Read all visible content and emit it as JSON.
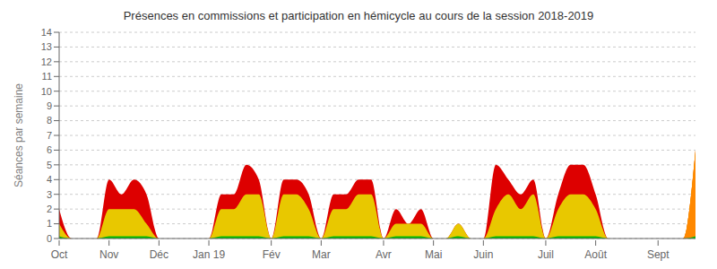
{
  "chart_data": {
    "type": "area",
    "title": "Présences en commissions et participation en hémicycle au cours de la session 2018-2019",
    "ylabel": "Séances par semaine",
    "categories": [
      "Oct",
      null,
      null,
      null,
      "Nov",
      null,
      null,
      null,
      "Déc",
      null,
      null,
      null,
      "Jan 19",
      null,
      null,
      null,
      null,
      "Fév",
      null,
      null,
      null,
      "Mar",
      null,
      null,
      null,
      null,
      "Avr",
      null,
      null,
      null,
      "Mai",
      null,
      null,
      null,
      "Juin",
      null,
      null,
      null,
      null,
      "Juil",
      null,
      null,
      null,
      "Août",
      null,
      null,
      null,
      null,
      "Sept",
      null,
      null,
      null
    ],
    "series": [
      {
        "color": "#dd0000",
        "values": [
          2,
          0,
          0,
          0,
          4,
          3,
          4,
          3,
          0,
          0,
          0,
          0,
          0,
          3,
          3,
          5,
          4,
          0,
          4,
          4,
          3,
          0,
          3,
          3,
          4,
          4,
          0,
          2,
          1,
          2,
          0,
          0,
          1,
          0,
          0,
          5,
          4,
          3,
          4,
          0,
          3,
          5,
          5,
          3,
          0,
          0,
          0,
          0,
          0,
          0,
          0,
          6
        ]
      },
      {
        "color": "#e8c800",
        "values": [
          1,
          0,
          0,
          0,
          2,
          2,
          2,
          1,
          0,
          0,
          0,
          0,
          0,
          2,
          2,
          3,
          3,
          0,
          3,
          3,
          2,
          0,
          2,
          2,
          3,
          3,
          0,
          1,
          1,
          1,
          0,
          0,
          1,
          0,
          0,
          2,
          3,
          2,
          3,
          0,
          2,
          3,
          3,
          2,
          0,
          0,
          0,
          0,
          0,
          0,
          0,
          6
        ]
      },
      {
        "color": "#ff8800",
        "values": [
          null,
          null,
          null,
          null,
          null,
          null,
          null,
          null,
          null,
          null,
          null,
          null,
          null,
          null,
          null,
          null,
          null,
          null,
          null,
          null,
          null,
          null,
          null,
          null,
          null,
          null,
          null,
          null,
          null,
          null,
          null,
          null,
          null,
          null,
          null,
          null,
          null,
          null,
          null,
          null,
          null,
          null,
          null,
          null,
          null,
          null,
          null,
          null,
          0,
          0,
          0,
          6
        ]
      },
      {
        "color": "#00bb00",
        "values": [
          0.15,
          0,
          0,
          0,
          0.15,
          0.15,
          0.15,
          0.15,
          0,
          0,
          0,
          0,
          0,
          0.15,
          0.15,
          0.15,
          0.15,
          0,
          0.15,
          0.15,
          0.15,
          0,
          0.15,
          0.15,
          0.15,
          0.15,
          0,
          0.15,
          0.15,
          0.15,
          0,
          0,
          0.15,
          0,
          0,
          0.15,
          0.15,
          0.15,
          0.15,
          0,
          0.15,
          0.15,
          0.15,
          0.15,
          0,
          0,
          0,
          0,
          0,
          0,
          0,
          0.15
        ]
      }
    ],
    "ylim": [
      0,
      14
    ],
    "yticks": [
      0,
      1,
      2,
      3,
      4,
      5,
      6,
      7,
      8,
      9,
      10,
      11,
      12,
      13,
      14
    ],
    "grid": true,
    "stacked": false
  }
}
